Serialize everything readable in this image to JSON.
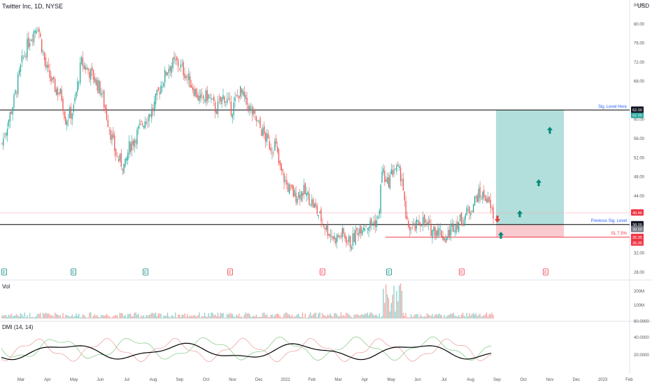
{
  "header": {
    "symbol_title": "Twitter Inc, 1D, NYSE",
    "currency": "USD"
  },
  "chart_data": {
    "type": "candlestick",
    "x_ticks": [
      "Mar",
      "Apr",
      "May",
      "Jun",
      "Jul",
      "Aug",
      "Sep",
      "Oct",
      "Nov",
      "Dec",
      "2022",
      "Feb",
      "Mar",
      "Apr",
      "May",
      "Jun",
      "Jul",
      "Aug",
      "Sep",
      "Oct",
      "Nov",
      "Dec",
      "2023",
      "Feb"
    ],
    "y_ticks": [
      "84.00",
      "80.00",
      "76.00",
      "72.00",
      "68.00",
      "60.00",
      "56.00",
      "52.00",
      "48.00",
      "44.00",
      "32.00",
      "28.00"
    ],
    "ylim": [
      28,
      84
    ],
    "close_path": [
      [
        0,
        55
      ],
      [
        3,
        64
      ],
      [
        5,
        72
      ],
      [
        7,
        77
      ],
      [
        9,
        80
      ],
      [
        11,
        71
      ],
      [
        13,
        67
      ],
      [
        15,
        65
      ],
      [
        16,
        60
      ],
      [
        18,
        62
      ],
      [
        20,
        72
      ],
      [
        22,
        70
      ],
      [
        23,
        69
      ],
      [
        25,
        66
      ],
      [
        28,
        55
      ],
      [
        29,
        52
      ],
      [
        31,
        50
      ],
      [
        32,
        54
      ],
      [
        34,
        57
      ],
      [
        36,
        60
      ],
      [
        38,
        62
      ],
      [
        40,
        67
      ],
      [
        42,
        71
      ],
      [
        44,
        72
      ],
      [
        46,
        70
      ],
      [
        48,
        67
      ],
      [
        50,
        64
      ],
      [
        52,
        65
      ],
      [
        54,
        62
      ],
      [
        56,
        65
      ],
      [
        58,
        62
      ],
      [
        60,
        66
      ],
      [
        62,
        63
      ],
      [
        64,
        60
      ],
      [
        66,
        57
      ],
      [
        68,
        54
      ],
      [
        69,
        55
      ],
      [
        70,
        50
      ],
      [
        72,
        46
      ],
      [
        74,
        44
      ],
      [
        76,
        45
      ],
      [
        78,
        43
      ],
      [
        80,
        40
      ],
      [
        82,
        37
      ],
      [
        84,
        35
      ],
      [
        86,
        36
      ],
      [
        88,
        34
      ],
      [
        90,
        37
      ],
      [
        91,
        38
      ],
      [
        93,
        38
      ],
      [
        95,
        39
      ],
      [
        96,
        50
      ],
      [
        97,
        46
      ],
      [
        99,
        50
      ],
      [
        101,
        48
      ],
      [
        102,
        38
      ],
      [
        104,
        37
      ],
      [
        106,
        39
      ],
      [
        108,
        37
      ],
      [
        110,
        37
      ],
      [
        112,
        35
      ],
      [
        114,
        38
      ],
      [
        116,
        39
      ],
      [
        118,
        41
      ],
      [
        120,
        44
      ],
      [
        122,
        44
      ],
      [
        123,
        42
      ],
      [
        124,
        40
      ]
    ],
    "sig_level_here": {
      "label": "Sig. Level Here",
      "value": "62.00"
    },
    "previous_sig_level": {
      "label": "Previous Sig. Level",
      "value": "38.00"
    },
    "stop_loss": {
      "label": "SL 7.5%",
      "value": "35.35"
    },
    "price_labels": [
      "62.00",
      "62.00",
      "40.46",
      "38.00",
      "38.00",
      "35.35",
      "35.35"
    ],
    "target_zone": {
      "from": 38,
      "to": 62
    },
    "risk_zone": {
      "from": 35.35,
      "to": 38
    },
    "earnings_markers": [
      "E",
      "E",
      "E",
      "E",
      "E",
      "E",
      "E",
      "E"
    ],
    "volume": {
      "title": "Vol",
      "y_ticks": [
        "200M",
        "100M"
      ]
    },
    "dmi": {
      "title": "DMI (14, 14)",
      "y_ticks": [
        "60.0000",
        "40.0000",
        "20.0000"
      ]
    },
    "colors": {
      "up": "#26a69a",
      "down": "#ef5350",
      "target": "#b2dfdb",
      "risk": "#f8c9ce",
      "dark": "#131722",
      "adx": "#000000"
    }
  }
}
